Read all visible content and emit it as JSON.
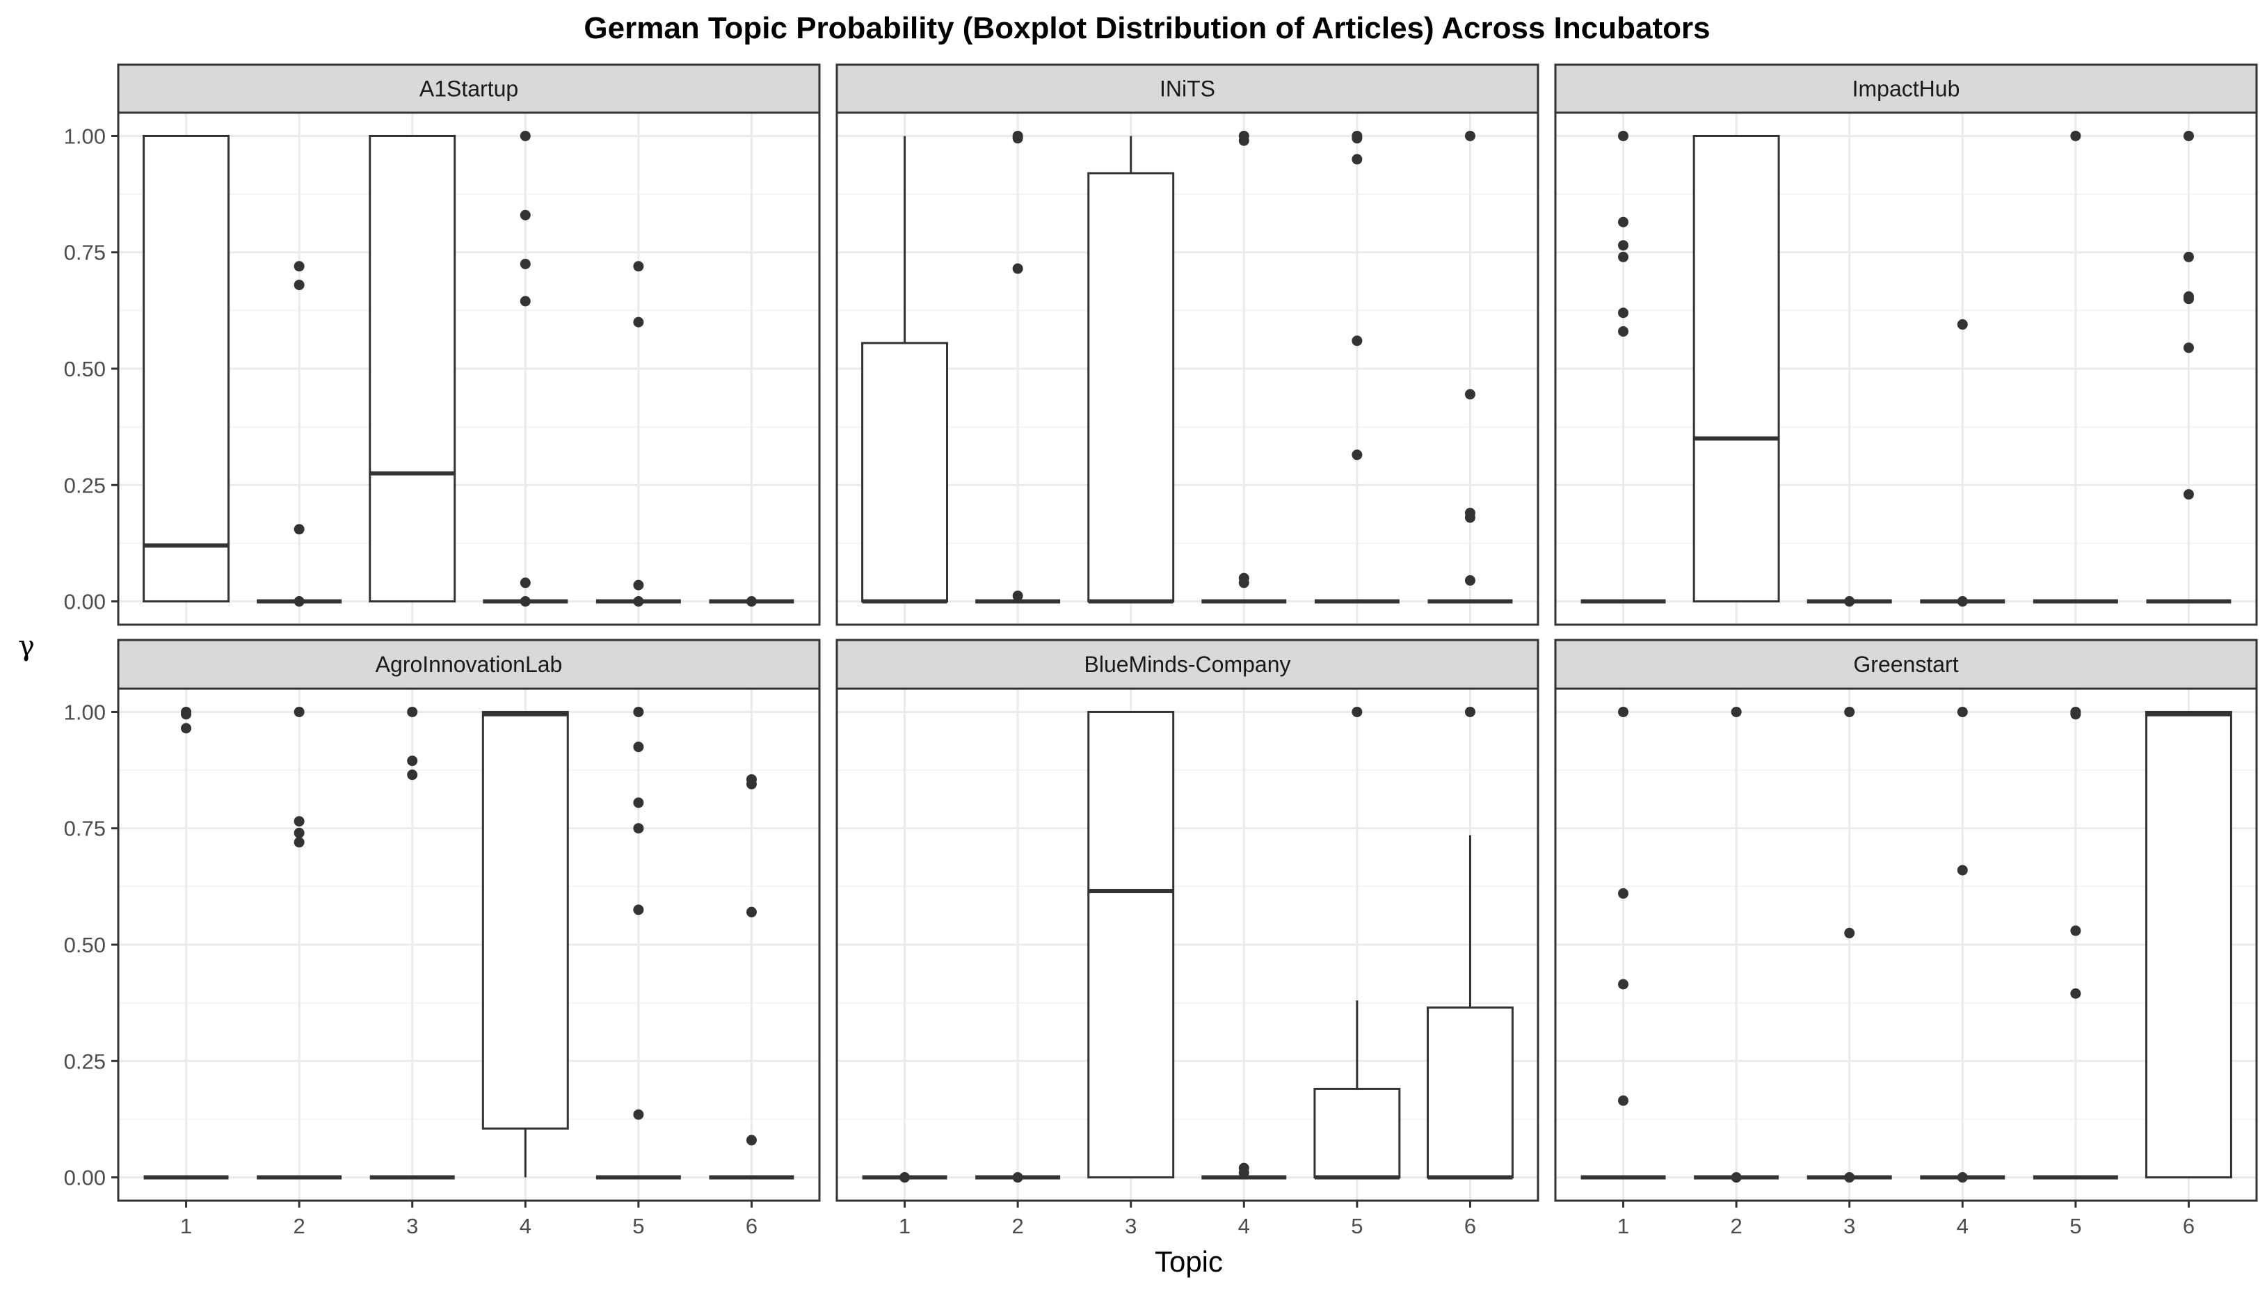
{
  "chart_data": {
    "type": "boxplot",
    "title": "German Topic Probability (Boxplot Distribution of Articles) Across Incubators",
    "xlabel": "Topic",
    "ylabel": "γ",
    "categories": [
      "1",
      "2",
      "3",
      "4",
      "5",
      "6"
    ],
    "y_ticks": [
      "0.00",
      "0.25",
      "0.50",
      "0.75",
      "1.00"
    ],
    "ylim": [
      -0.05,
      1.05
    ],
    "grid": true,
    "colors": {
      "strip_fill": "#d9d9d9",
      "border": "#333333",
      "grid_major": "#ebebeb",
      "grid_minor": "#f4f4f4",
      "point": "#333333"
    },
    "panels": [
      {
        "name": "A1Startup",
        "boxes": [
          {
            "topic": "1",
            "lower": 0.0,
            "q1": 0.0,
            "median": 0.12,
            "q3": 1.0,
            "upper": 1.0,
            "outliers": []
          },
          {
            "topic": "2",
            "lower": 0.0,
            "q1": 0.0,
            "median": 0.0,
            "q3": 0.0,
            "upper": 0.0,
            "outliers": [
              0.72,
              0.68,
              0.155,
              0.0
            ]
          },
          {
            "topic": "3",
            "lower": 0.0,
            "q1": 0.0,
            "median": 0.275,
            "q3": 1.0,
            "upper": 1.0,
            "outliers": []
          },
          {
            "topic": "4",
            "lower": 0.0,
            "q1": 0.0,
            "median": 0.0,
            "q3": 0.0,
            "upper": 0.0,
            "outliers": [
              1.0,
              0.83,
              0.725,
              0.645,
              0.04,
              0.0
            ]
          },
          {
            "topic": "5",
            "lower": 0.0,
            "q1": 0.0,
            "median": 0.0,
            "q3": 0.0,
            "upper": 0.0,
            "outliers": [
              0.72,
              0.6,
              0.035,
              0.0
            ]
          },
          {
            "topic": "6",
            "lower": 0.0,
            "q1": 0.0,
            "median": 0.0,
            "q3": 0.0,
            "upper": 0.0,
            "outliers": [
              0.0
            ]
          }
        ]
      },
      {
        "name": "INiTS",
        "boxes": [
          {
            "topic": "1",
            "lower": 0.0,
            "q1": 0.0,
            "median": 0.0,
            "q3": 0.555,
            "upper": 1.0,
            "outliers": []
          },
          {
            "topic": "2",
            "lower": 0.0,
            "q1": 0.0,
            "median": 0.0,
            "q3": 0.0,
            "upper": 0.0,
            "outliers": [
              1.0,
              0.995,
              0.715,
              0.012
            ]
          },
          {
            "topic": "3",
            "lower": 0.0,
            "q1": 0.0,
            "median": 0.0,
            "q3": 0.92,
            "upper": 1.0,
            "outliers": []
          },
          {
            "topic": "4",
            "lower": 0.0,
            "q1": 0.0,
            "median": 0.0,
            "q3": 0.0,
            "upper": 0.0,
            "outliers": [
              1.0,
              0.99,
              0.05,
              0.04
            ]
          },
          {
            "topic": "5",
            "lower": 0.0,
            "q1": 0.0,
            "median": 0.0,
            "q3": 0.0,
            "upper": 0.0,
            "outliers": [
              1.0,
              0.995,
              0.95,
              0.56,
              0.315
            ]
          },
          {
            "topic": "6",
            "lower": 0.0,
            "q1": 0.0,
            "median": 0.0,
            "q3": 0.0,
            "upper": 0.0,
            "outliers": [
              1.0,
              0.445,
              0.19,
              0.18,
              0.045
            ]
          }
        ]
      },
      {
        "name": "ImpactHub",
        "boxes": [
          {
            "topic": "1",
            "lower": 0.0,
            "q1": 0.0,
            "median": 0.0,
            "q3": 0.0,
            "upper": 0.0,
            "outliers": [
              1.0,
              0.815,
              0.765,
              0.74,
              0.62,
              0.58
            ]
          },
          {
            "topic": "2",
            "lower": 0.0,
            "q1": 0.0,
            "median": 0.35,
            "q3": 1.0,
            "upper": 1.0,
            "outliers": []
          },
          {
            "topic": "3",
            "lower": 0.0,
            "q1": 0.0,
            "median": 0.0,
            "q3": 0.0,
            "upper": 0.0,
            "outliers": [
              0.0
            ]
          },
          {
            "topic": "4",
            "lower": 0.0,
            "q1": 0.0,
            "median": 0.0,
            "q3": 0.0,
            "upper": 0.0,
            "outliers": [
              0.595,
              0.0
            ]
          },
          {
            "topic": "5",
            "lower": 0.0,
            "q1": 0.0,
            "median": 0.0,
            "q3": 0.0,
            "upper": 0.0,
            "outliers": [
              1.0
            ]
          },
          {
            "topic": "6",
            "lower": 0.0,
            "q1": 0.0,
            "median": 0.0,
            "q3": 0.0,
            "upper": 0.0,
            "outliers": [
              1.0,
              0.74,
              0.655,
              0.65,
              0.545,
              0.23
            ]
          }
        ]
      },
      {
        "name": "AgroInnovationLab",
        "boxes": [
          {
            "topic": "1",
            "lower": 0.0,
            "q1": 0.0,
            "median": 0.0,
            "q3": 0.0,
            "upper": 0.0,
            "outliers": [
              1.0,
              0.995,
              0.965
            ]
          },
          {
            "topic": "2",
            "lower": 0.0,
            "q1": 0.0,
            "median": 0.0,
            "q3": 0.0,
            "upper": 0.0,
            "outliers": [
              1.0,
              0.765,
              0.74,
              0.72
            ]
          },
          {
            "topic": "3",
            "lower": 0.0,
            "q1": 0.0,
            "median": 0.0,
            "q3": 0.0,
            "upper": 0.0,
            "outliers": [
              1.0,
              0.895,
              0.865
            ]
          },
          {
            "topic": "4",
            "lower": 0.0,
            "q1": 0.105,
            "median": 0.995,
            "q3": 1.0,
            "upper": 1.0,
            "outliers": []
          },
          {
            "topic": "5",
            "lower": 0.0,
            "q1": 0.0,
            "median": 0.0,
            "q3": 0.0,
            "upper": 0.0,
            "outliers": [
              1.0,
              0.925,
              0.805,
              0.75,
              0.575,
              0.135
            ]
          },
          {
            "topic": "6",
            "lower": 0.0,
            "q1": 0.0,
            "median": 0.0,
            "q3": 0.0,
            "upper": 0.0,
            "outliers": [
              0.855,
              0.845,
              0.57,
              0.08
            ]
          }
        ]
      },
      {
        "name": "BlueMinds-Company",
        "boxes": [
          {
            "topic": "1",
            "lower": 0.0,
            "q1": 0.0,
            "median": 0.0,
            "q3": 0.0,
            "upper": 0.0,
            "outliers": [
              0.0
            ]
          },
          {
            "topic": "2",
            "lower": 0.0,
            "q1": 0.0,
            "median": 0.0,
            "q3": 0.0,
            "upper": 0.0,
            "outliers": [
              0.0
            ]
          },
          {
            "topic": "3",
            "lower": 0.0,
            "q1": 0.0,
            "median": 0.615,
            "q3": 1.0,
            "upper": 1.0,
            "outliers": []
          },
          {
            "topic": "4",
            "lower": 0.0,
            "q1": 0.0,
            "median": 0.0,
            "q3": 0.0,
            "upper": 0.0,
            "outliers": [
              0.02,
              0.01
            ]
          },
          {
            "topic": "5",
            "lower": 0.0,
            "q1": 0.0,
            "median": 0.0,
            "q3": 0.19,
            "upper": 0.38,
            "outliers": [
              1.0
            ]
          },
          {
            "topic": "6",
            "lower": 0.0,
            "q1": 0.0,
            "median": 0.0,
            "q3": 0.365,
            "upper": 0.735,
            "outliers": [
              1.0
            ]
          }
        ]
      },
      {
        "name": "Greenstart",
        "boxes": [
          {
            "topic": "1",
            "lower": 0.0,
            "q1": 0.0,
            "median": 0.0,
            "q3": 0.0,
            "upper": 0.0,
            "outliers": [
              1.0,
              0.61,
              0.415,
              0.165
            ]
          },
          {
            "topic": "2",
            "lower": 0.0,
            "q1": 0.0,
            "median": 0.0,
            "q3": 0.0,
            "upper": 0.0,
            "outliers": [
              1.0,
              0.0
            ]
          },
          {
            "topic": "3",
            "lower": 0.0,
            "q1": 0.0,
            "median": 0.0,
            "q3": 0.0,
            "upper": 0.0,
            "outliers": [
              1.0,
              0.525,
              0.0
            ]
          },
          {
            "topic": "4",
            "lower": 0.0,
            "q1": 0.0,
            "median": 0.0,
            "q3": 0.0,
            "upper": 0.0,
            "outliers": [
              1.0,
              0.66,
              0.0
            ]
          },
          {
            "topic": "5",
            "lower": 0.0,
            "q1": 0.0,
            "median": 0.0,
            "q3": 0.0,
            "upper": 0.0,
            "outliers": [
              1.0,
              0.995,
              0.53,
              0.395
            ]
          },
          {
            "topic": "6",
            "lower": 0.0,
            "q1": 0.0,
            "median": 0.995,
            "q3": 1.0,
            "upper": 1.0,
            "outliers": []
          }
        ]
      }
    ]
  }
}
